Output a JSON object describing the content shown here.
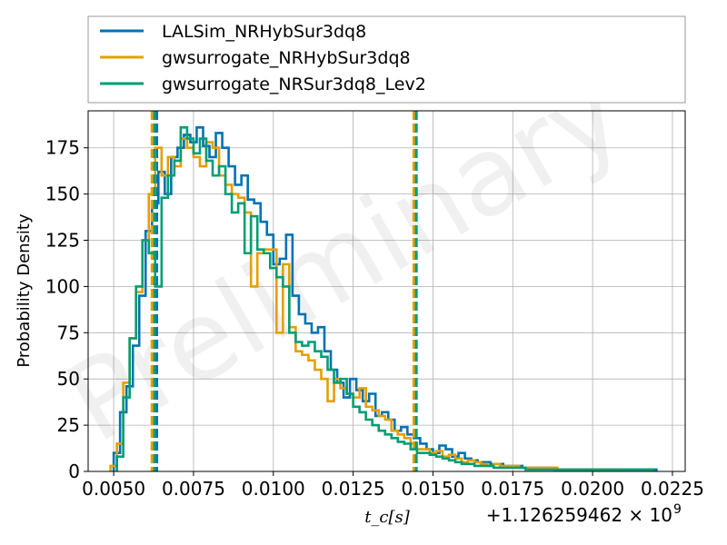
{
  "chart_data": {
    "type": "histogram",
    "xlabel": "t_c[s]",
    "ylabel": "Probability Density",
    "x_offset_label": "+1.126259462 × 10",
    "x_offset_exponent": "9",
    "watermark": "Preliminary",
    "xlim": [
      0.0042,
      0.0229
    ],
    "ylim": [
      0,
      195
    ],
    "x_ticks": [
      0.005,
      0.0075,
      0.01,
      0.0125,
      0.015,
      0.0175,
      0.02,
      0.0225
    ],
    "x_tick_labels": [
      "0.0050",
      "0.0075",
      "0.0100",
      "0.0125",
      "0.0150",
      "0.0175",
      "0.0200",
      "0.0225"
    ],
    "y_ticks": [
      0,
      25,
      50,
      75,
      100,
      125,
      150,
      175
    ],
    "y_tick_labels": [
      "0",
      "25",
      "50",
      "75",
      "100",
      "125",
      "150",
      "175"
    ],
    "grid": true,
    "legend_position": "top, outside plot",
    "series": [
      {
        "name": "LALSim_NRHybSur3dq8",
        "color": "#0072b2",
        "bin_edges": [
          0.005,
          0.0052,
          0.0054,
          0.0056,
          0.0058,
          0.006,
          0.0062,
          0.0064,
          0.0066,
          0.0068,
          0.007,
          0.0072,
          0.0074,
          0.0076,
          0.0078,
          0.008,
          0.0082,
          0.0084,
          0.0086,
          0.0088,
          0.009,
          0.0092,
          0.0094,
          0.0096,
          0.0098,
          0.01,
          0.0102,
          0.0104,
          0.0106,
          0.0108,
          0.011,
          0.0112,
          0.0114,
          0.0116,
          0.0118,
          0.012,
          0.0122,
          0.0124,
          0.0126,
          0.0128,
          0.013,
          0.0132,
          0.0134,
          0.0136,
          0.0138,
          0.014,
          0.0142,
          0.0144,
          0.0146,
          0.0148,
          0.015,
          0.0152,
          0.0154,
          0.0156,
          0.0158,
          0.016,
          0.0162,
          0.0164,
          0.0166,
          0.0168,
          0.017,
          0.0172,
          0.0174,
          0.0176,
          0.0178,
          0.018,
          0.0182,
          0.0184,
          0.0186,
          0.0188,
          0.019,
          0.0192,
          0.0194,
          0.0196,
          0.0198,
          0.02,
          0.0202,
          0.0204,
          0.0206,
          0.0208,
          0.021,
          0.0212,
          0.0214,
          0.0216,
          0.0218,
          0.022
        ],
        "densities": [
          10,
          32,
          46,
          68,
          95,
          130,
          145,
          162,
          150,
          170,
          175,
          182,
          178,
          186,
          176,
          170,
          183,
          175,
          165,
          155,
          160,
          147,
          145,
          135,
          128,
          112,
          115,
          128,
          95,
          85,
          80,
          75,
          78,
          65,
          55,
          48,
          40,
          50,
          44,
          38,
          42,
          30,
          32,
          28,
          22,
          24,
          20,
          18,
          15,
          12,
          10,
          14,
          12,
          8,
          10,
          7,
          6,
          5,
          5,
          4,
          4,
          3,
          3,
          3,
          2,
          2,
          2,
          2,
          2,
          1,
          1,
          1,
          1,
          1,
          1,
          1,
          1,
          1,
          1,
          1,
          1,
          1,
          1,
          1,
          1
        ],
        "vlines": [
          0.00635,
          0.01445
        ]
      },
      {
        "name": "gwsurrogate_NRHybSur3dq8",
        "color": "#e69f00",
        "bin_edges": [
          0.0049,
          0.0051,
          0.0053,
          0.0055,
          0.0057,
          0.0059,
          0.0061,
          0.0063,
          0.0065,
          0.0067,
          0.0069,
          0.0071,
          0.0073,
          0.0075,
          0.0077,
          0.0079,
          0.0081,
          0.0083,
          0.0085,
          0.0087,
          0.0089,
          0.0091,
          0.0093,
          0.0095,
          0.0097,
          0.0099,
          0.0101,
          0.0103,
          0.0105,
          0.0107,
          0.0109,
          0.0111,
          0.0113,
          0.0115,
          0.0117,
          0.0119,
          0.0121,
          0.0123,
          0.0125,
          0.0127,
          0.0129,
          0.0131,
          0.0133,
          0.0135,
          0.0137,
          0.0139,
          0.0141,
          0.0143,
          0.0145,
          0.0147,
          0.0149,
          0.0151,
          0.0153,
          0.0155,
          0.0157,
          0.0159,
          0.0161,
          0.0163,
          0.0165,
          0.0167,
          0.0169,
          0.0171,
          0.0173,
          0.0175,
          0.0177,
          0.0179,
          0.0181,
          0.0183,
          0.0185,
          0.0187,
          0.0189,
          0.0191,
          0.0193,
          0.0195,
          0.0197,
          0.0199,
          0.0201,
          0.0203,
          0.0205,
          0.0207,
          0.0209
        ],
        "densities": [
          3,
          15,
          48,
          72,
          97,
          125,
          150,
          175,
          160,
          170,
          165,
          180,
          175,
          170,
          165,
          178,
          175,
          160,
          155,
          150,
          148,
          140,
          100,
          118,
          120,
          120,
          75,
          112,
          78,
          65,
          63,
          60,
          55,
          50,
          38,
          50,
          45,
          42,
          40,
          45,
          35,
          33,
          30,
          28,
          22,
          20,
          18,
          15,
          12,
          12,
          10,
          11,
          8,
          9,
          7,
          5,
          6,
          5,
          4,
          3,
          4,
          3,
          3,
          3,
          2,
          2,
          2,
          2,
          2,
          2,
          1,
          1,
          1,
          1,
          1,
          1,
          1,
          1,
          1,
          1
        ],
        "vlines": [
          0.0062,
          0.0144
        ]
      },
      {
        "name": "gwsurrogate_NRSur3dq8_Lev2",
        "color": "#009e73",
        "bin_edges": [
          0.0051,
          0.0053,
          0.0055,
          0.0057,
          0.0059,
          0.0061,
          0.0063,
          0.0065,
          0.0067,
          0.0069,
          0.0071,
          0.0073,
          0.0075,
          0.0077,
          0.0079,
          0.0081,
          0.0083,
          0.0085,
          0.0087,
          0.0089,
          0.0091,
          0.0093,
          0.0095,
          0.0097,
          0.0099,
          0.0101,
          0.0103,
          0.0105,
          0.0107,
          0.0109,
          0.0111,
          0.0113,
          0.0115,
          0.0117,
          0.0119,
          0.0121,
          0.0123,
          0.0125,
          0.0127,
          0.0129,
          0.0131,
          0.0133,
          0.0135,
          0.0137,
          0.0139,
          0.0141,
          0.0143,
          0.0145,
          0.0147,
          0.0149,
          0.0151,
          0.0153,
          0.0155,
          0.0157,
          0.0159,
          0.0161,
          0.0163,
          0.0165,
          0.0167,
          0.0169,
          0.0171,
          0.0173,
          0.0175,
          0.0177,
          0.0179,
          0.0181,
          0.0183,
          0.0185,
          0.0187,
          0.0189,
          0.0191,
          0.0193,
          0.0195,
          0.0197,
          0.0199,
          0.0201,
          0.0203,
          0.0205,
          0.0207,
          0.0209,
          0.0211,
          0.0213,
          0.0215,
          0.0217,
          0.0219
        ],
        "densities": [
          8,
          40,
          72,
          100,
          125,
          118,
          100,
          148,
          160,
          168,
          186,
          180,
          172,
          180,
          168,
          160,
          165,
          150,
          140,
          145,
          118,
          138,
          120,
          118,
          110,
          105,
          100,
          75,
          70,
          68,
          70,
          65,
          62,
          55,
          48,
          50,
          42,
          35,
          32,
          28,
          25,
          22,
          20,
          18,
          16,
          15,
          12,
          10,
          10,
          9,
          8,
          7,
          6,
          5,
          4,
          4,
          3,
          3,
          3,
          2,
          2,
          2,
          2,
          2,
          1,
          1,
          1,
          1,
          1,
          1,
          1,
          1,
          1,
          1,
          1,
          1,
          1,
          1,
          1,
          1,
          1,
          1,
          1,
          1
        ],
        "vlines": [
          0.00628,
          0.01448
        ]
      }
    ]
  }
}
